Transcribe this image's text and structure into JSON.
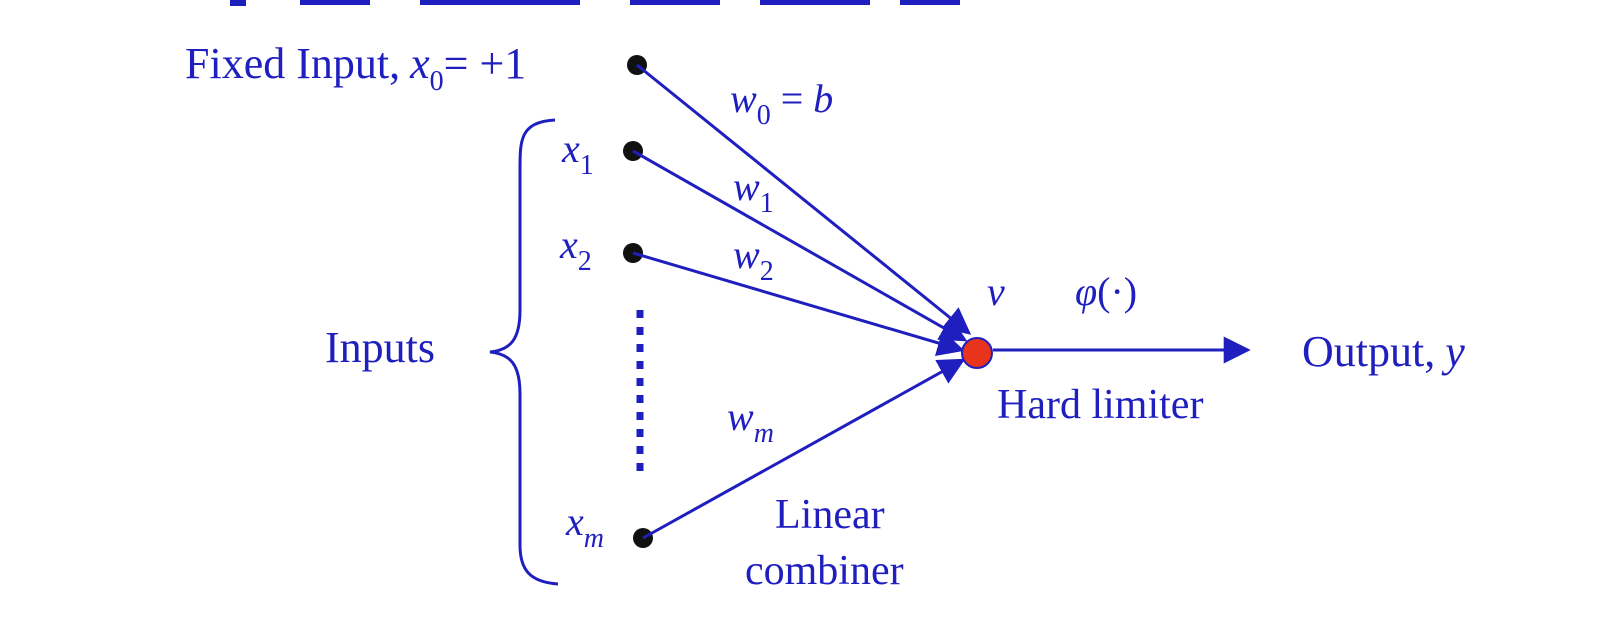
{
  "colors": {
    "ink": "#1f1fbf",
    "node": "#111111",
    "sum_node": "#e8341c"
  },
  "fixed_input": {
    "label": "Fixed Input,",
    "var": "x",
    "sub": "0",
    "rest": "= +1"
  },
  "inputs_label": "Inputs",
  "inputs": [
    {
      "var": "x",
      "sub": "1"
    },
    {
      "var": "x",
      "sub": "2"
    },
    {
      "var": "x",
      "sub": "m"
    }
  ],
  "weights": {
    "w0": {
      "var": "w",
      "sub": "0",
      "rest": " = ",
      "b": "b"
    },
    "w1": {
      "var": "w",
      "sub": "1"
    },
    "w2": {
      "var": "w",
      "sub": "2"
    },
    "wm": {
      "var": "w",
      "sub": "m"
    }
  },
  "v_label": "v",
  "phi": {
    "sym": "φ",
    "arg": "(·)"
  },
  "hard_limiter": "Hard limiter",
  "linear_combiner": [
    "Linear",
    "combiner"
  ],
  "output": {
    "label": "Output,",
    "var": "y"
  },
  "top_fragment_note": ""
}
